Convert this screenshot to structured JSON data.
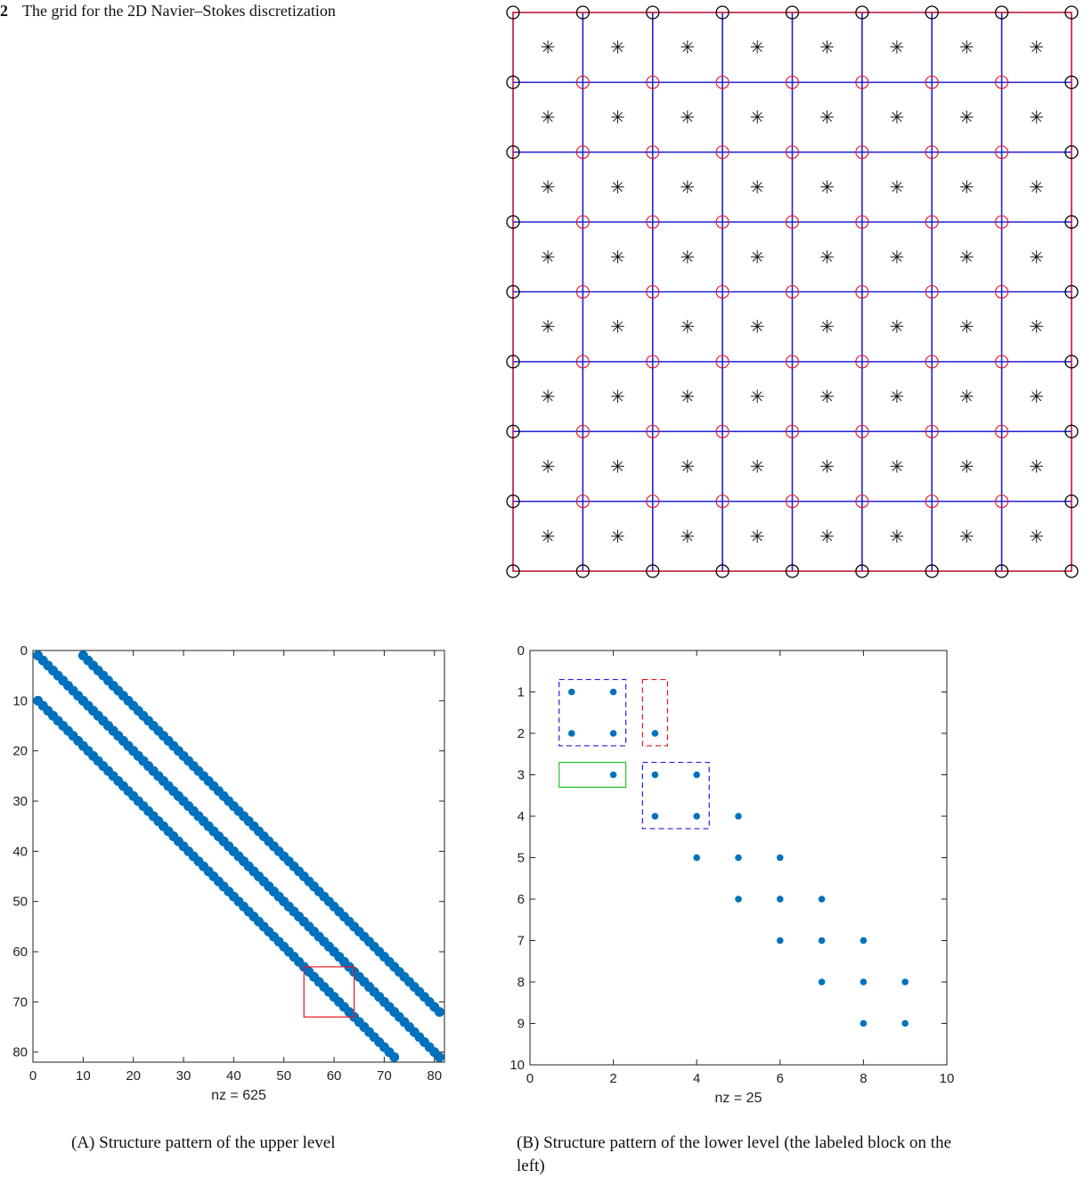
{
  "figure": {
    "number": "2",
    "caption": "The grid for the 2D Navier–Stokes discretization"
  },
  "grid": {
    "cells": 8,
    "cell_marker": "✳",
    "colors": {
      "boundary": "#c0163c",
      "interior": "#1f1fd6",
      "corner_circle": "#000000",
      "inner_circle": "#e8141e"
    }
  },
  "chart_data": [
    {
      "type": "scatter",
      "title": "",
      "xlabel": "nz = 625",
      "ylabel": "",
      "xlim": [
        0,
        82
      ],
      "ylim": [
        82,
        0
      ],
      "xticks": [
        0,
        10,
        20,
        30,
        40,
        50,
        60,
        70,
        80
      ],
      "yticks": [
        0,
        10,
        20,
        30,
        40,
        50,
        60,
        70,
        80
      ],
      "marker_color": "#0072bd",
      "bands": [
        {
          "x": [
            1,
            72
          ],
          "y": [
            1,
            72
          ],
          "note": "main diagonal (with gaps every 9)"
        },
        {
          "x": [
            10,
            81
          ],
          "y": [
            1,
            72
          ]
        },
        {
          "x": [
            1,
            72
          ],
          "y": [
            10,
            81
          ]
        },
        {
          "x": [
            10,
            81
          ],
          "y": [
            10,
            81
          ]
        }
      ],
      "highlight_box": {
        "x": [
          54,
          64
        ],
        "y": [
          63,
          73
        ],
        "color": "#e8141e"
      }
    },
    {
      "type": "scatter",
      "title": "",
      "xlabel": "nz = 25",
      "ylabel": "",
      "xlim": [
        0,
        10
      ],
      "ylim": [
        10,
        0
      ],
      "xticks": [
        0,
        2,
        4,
        6,
        8,
        10
      ],
      "yticks": [
        0,
        1,
        2,
        3,
        4,
        5,
        6,
        7,
        8,
        9,
        10
      ],
      "marker_color": "#0072bd",
      "points": [
        [
          1,
          1
        ],
        [
          2,
          1
        ],
        [
          1,
          2
        ],
        [
          2,
          2
        ],
        [
          3,
          2
        ],
        [
          2,
          3
        ],
        [
          3,
          3
        ],
        [
          4,
          3
        ],
        [
          3,
          4
        ],
        [
          4,
          4
        ],
        [
          5,
          4
        ],
        [
          4,
          5
        ],
        [
          5,
          5
        ],
        [
          6,
          5
        ],
        [
          5,
          6
        ],
        [
          6,
          6
        ],
        [
          7,
          6
        ],
        [
          6,
          7
        ],
        [
          7,
          7
        ],
        [
          8,
          7
        ],
        [
          7,
          8
        ],
        [
          8,
          8
        ],
        [
          9,
          8
        ],
        [
          8,
          9
        ],
        [
          9,
          9
        ]
      ],
      "boxes": [
        {
          "x": [
            0.7,
            2.3
          ],
          "y": [
            0.7,
            2.3
          ],
          "color": "#2020d8",
          "style": "dashed"
        },
        {
          "x": [
            2.7,
            3.3
          ],
          "y": [
            0.7,
            2.3
          ],
          "color": "#e8141e",
          "style": "dashed"
        },
        {
          "x": [
            0.7,
            2.3
          ],
          "y": [
            2.7,
            3.3
          ],
          "color": "#22c022",
          "style": "solid"
        },
        {
          "x": [
            2.7,
            4.3
          ],
          "y": [
            2.7,
            4.3
          ],
          "color": "#2020d8",
          "style": "dashed"
        }
      ]
    }
  ],
  "captions": {
    "a": "(A) Structure pattern of the upper level",
    "b": "(B) Structure pattern of the lower level (the labeled block on the left)"
  }
}
